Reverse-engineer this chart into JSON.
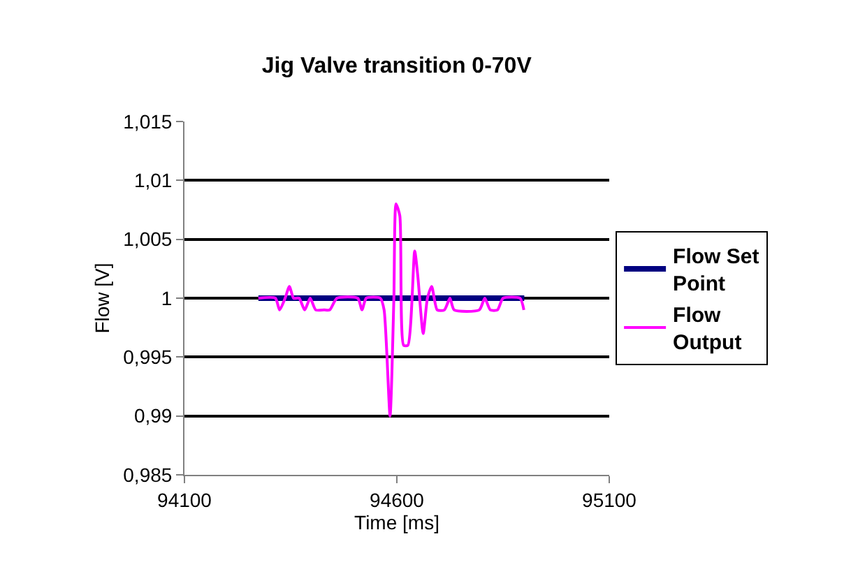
{
  "chart_data": {
    "type": "line",
    "title": "Jig Valve transition 0-70V",
    "xlabel": "Time [ms]",
    "ylabel": "Flow [V]",
    "xlim": [
      94100,
      95100
    ],
    "xticks": [
      94100,
      94600,
      95100
    ],
    "ylim": [
      0.985,
      1.015
    ],
    "yticks": [
      {
        "value": 0.985,
        "label": "0,985"
      },
      {
        "value": 0.99,
        "label": "0,99"
      },
      {
        "value": 0.995,
        "label": "0,995"
      },
      {
        "value": 1,
        "label": "1"
      },
      {
        "value": 1.005,
        "label": "1,005"
      },
      {
        "value": 1.01,
        "label": "1,01"
      },
      {
        "value": 1.015,
        "label": "1,015"
      }
    ],
    "grid": "y",
    "legend": "right",
    "marker": "none",
    "line_style": "solid",
    "series": [
      {
        "name": "Flow Set Point",
        "color": "#000080",
        "x": [
          94274,
          94900
        ],
        "values": [
          1,
          1
        ]
      },
      {
        "name": "Flow Output",
        "color": "#ff00ff",
        "x": [
          94274,
          94314,
          94324,
          94337,
          94347,
          94357,
          94370,
          94383,
          94396,
          94409,
          94429,
          94442,
          94459,
          94508,
          94518,
          94528,
          94561,
          94570,
          94584,
          94593,
          94598,
          94607,
          94616,
          94626,
          94642,
          94649,
          94662,
          94672,
          94682,
          94695,
          94712,
          94725,
          94735,
          94794,
          94807,
          94820,
          94837,
          94850,
          94890,
          94899
        ],
        "values": [
          1,
          1,
          0.999,
          1,
          1.001,
          1,
          1,
          0.999,
          1,
          0.999,
          0.999,
          0.999,
          1,
          1,
          0.999,
          1,
          1,
          0.999,
          0.99,
          1,
          1.008,
          1.007,
          0.996,
          0.996,
          1.004,
          1.002,
          0.997,
          1,
          1.001,
          0.999,
          0.999,
          1,
          0.999,
          0.999,
          1,
          0.999,
          0.999,
          1,
          1,
          0.999
        ]
      }
    ]
  }
}
